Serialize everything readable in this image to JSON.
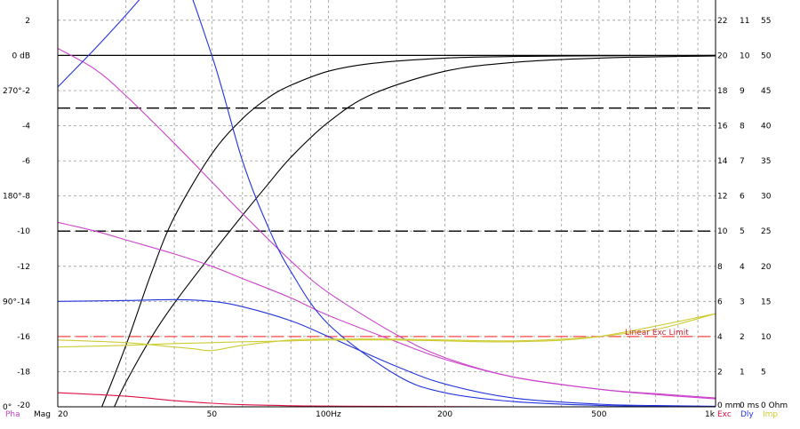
{
  "chart_data": {
    "type": "line",
    "x_scale": "log",
    "xlim": [
      20,
      1000
    ],
    "x_ticks": [
      {
        "value": 20,
        "label": "20"
      },
      {
        "value": 50,
        "label": "50"
      },
      {
        "value": 100,
        "label": "100Hz"
      },
      {
        "value": 200,
        "label": "200"
      },
      {
        "value": 500,
        "label": "500"
      },
      {
        "value": 1000,
        "label": "1k"
      }
    ],
    "x_minor": [
      30,
      40,
      60,
      70,
      80,
      90,
      150,
      300,
      400,
      600,
      700,
      800,
      900
    ],
    "left_axis": {
      "ylim": [
        -20,
        4
      ],
      "ticks": [
        {
          "value": 2,
          "label": "2"
        },
        {
          "value": 0,
          "label": "0 dB"
        },
        {
          "value": -2,
          "label": "-2"
        },
        {
          "value": -4,
          "label": "-4"
        },
        {
          "value": -6,
          "label": "-6"
        },
        {
          "value": -8,
          "label": "-8"
        },
        {
          "value": -10,
          "label": "-10"
        },
        {
          "value": -12,
          "label": "-12"
        },
        {
          "value": -14,
          "label": "-14"
        },
        {
          "value": -16,
          "label": "-16"
        },
        {
          "value": -18,
          "label": "-18"
        },
        {
          "value": -20,
          "label": "-20"
        }
      ]
    },
    "phase_axis": {
      "ticks": [
        {
          "at_db": -2,
          "label": "270°"
        },
        {
          "at_db": -8,
          "label": "180°"
        },
        {
          "at_db": -14,
          "label": "90°"
        },
        {
          "at_db": -20,
          "label": "0°"
        }
      ]
    },
    "right_axes": {
      "col1": [
        {
          "at_db": 2,
          "label": "22"
        },
        {
          "at_db": 0,
          "label": "20"
        },
        {
          "at_db": -2,
          "label": "18"
        },
        {
          "at_db": -4,
          "label": "16"
        },
        {
          "at_db": -6,
          "label": "14"
        },
        {
          "at_db": -8,
          "label": "12"
        },
        {
          "at_db": -10,
          "label": "10"
        },
        {
          "at_db": -12,
          "label": "8"
        },
        {
          "at_db": -14,
          "label": "6"
        },
        {
          "at_db": -16,
          "label": "4"
        },
        {
          "at_db": -18,
          "label": "2"
        },
        {
          "at_db": -20,
          "label": "0 mm"
        }
      ],
      "col2": [
        {
          "at_db": 2,
          "label": "11"
        },
        {
          "at_db": 0,
          "label": "10"
        },
        {
          "at_db": -2,
          "label": "9"
        },
        {
          "at_db": -4,
          "label": "8"
        },
        {
          "at_db": -6,
          "label": "7"
        },
        {
          "at_db": -8,
          "label": "6"
        },
        {
          "at_db": -10,
          "label": "5"
        },
        {
          "at_db": -12,
          "label": "4"
        },
        {
          "at_db": -14,
          "label": "3"
        },
        {
          "at_db": -16,
          "label": "2"
        },
        {
          "at_db": -18,
          "label": "1"
        },
        {
          "at_db": -20,
          "label": "0 ms"
        }
      ],
      "col3": [
        {
          "at_db": 2,
          "label": "55"
        },
        {
          "at_db": 0,
          "label": "50"
        },
        {
          "at_db": -2,
          "label": "45"
        },
        {
          "at_db": -4,
          "label": "40"
        },
        {
          "at_db": -6,
          "label": "35"
        },
        {
          "at_db": -8,
          "label": "30"
        },
        {
          "at_db": -10,
          "label": "25"
        },
        {
          "at_db": -12,
          "label": "20"
        },
        {
          "at_db": -14,
          "label": "15"
        },
        {
          "at_db": -16,
          "label": "10"
        },
        {
          "at_db": -18,
          "label": "5"
        },
        {
          "at_db": -20,
          "label": "0 Ohm"
        }
      ]
    },
    "bottom_labels": {
      "pha": "Pha",
      "mag": "Mag",
      "exc": "Exc",
      "dly": "Dly",
      "imp": "Imp"
    },
    "label_colors": {
      "pha": "#cc44cc",
      "mag": "#000000",
      "exc": "#dd1144",
      "dly": "#2233dd",
      "imp": "#cccc33"
    },
    "reference_lines": [
      {
        "y": 0,
        "style": "solid",
        "color": "#000000"
      },
      {
        "y": -3,
        "style": "dashed",
        "color": "#000000"
      },
      {
        "y": -10,
        "style": "dashed",
        "color": "#000000"
      },
      {
        "y": -16,
        "style": "dashed",
        "color": "#ff4444",
        "label": "Linear Exc Limit",
        "label_color": "#cc2233"
      }
    ],
    "series": [
      {
        "kind": "magnitude",
        "color": "#000000",
        "x": [
          26,
          30,
          35,
          40,
          50,
          60,
          70,
          80,
          100,
          130,
          200,
          300,
          500,
          1000
        ],
        "y": [
          -20,
          -16.5,
          -12.3,
          -9.2,
          -5.6,
          -3.6,
          -2.4,
          -1.7,
          -0.9,
          -0.45,
          -0.15,
          -0.06,
          -0.02,
          0
        ]
      },
      {
        "kind": "magnitude",
        "color": "#000000",
        "x": [
          28,
          30,
          35,
          40,
          50,
          60,
          70,
          80,
          100,
          130,
          200,
          300,
          500,
          1000
        ],
        "y": [
          -20,
          -18.6,
          -16,
          -14.1,
          -11.3,
          -9.1,
          -7.3,
          -5.8,
          -3.8,
          -2.2,
          -0.9,
          -0.4,
          -0.15,
          -0.03
        ]
      },
      {
        "kind": "phase",
        "color": "#cc44cc",
        "x": [
          20,
          25,
          30,
          40,
          50,
          60,
          80,
          100,
          150,
          200,
          300,
          500,
          700,
          1000
        ],
        "y": [
          0.4,
          -0.8,
          -2.3,
          -5.0,
          -7.2,
          -9.0,
          -11.7,
          -13.5,
          -15.9,
          -17.2,
          -18.3,
          -19.0,
          -19.25,
          -19.5
        ]
      },
      {
        "kind": "phase",
        "color": "#cc44cc",
        "x": [
          20,
          25,
          30,
          40,
          50,
          60,
          80,
          100,
          150,
          200,
          300,
          500,
          700,
          1000
        ],
        "y": [
          -9.5,
          -10.0,
          -10.5,
          -11.3,
          -12.0,
          -12.7,
          -13.8,
          -14.8,
          -16.3,
          -17.3,
          -18.3,
          -19.0,
          -19.3,
          -19.55
        ]
      },
      {
        "kind": "delay",
        "color": "#2233dd",
        "x": [
          20,
          25,
          30,
          35,
          40,
          50,
          60,
          70,
          80,
          100,
          150,
          200,
          300,
          500,
          1000
        ],
        "y": [
          -1.8,
          0.4,
          2.3,
          4.0,
          5.5,
          0,
          -6,
          -9.8,
          -12.3,
          -15.3,
          -18.2,
          -19.2,
          -19.7,
          -19.92,
          -20
        ]
      },
      {
        "kind": "delay",
        "color": "#2233dd",
        "x": [
          20,
          30,
          40,
          50,
          60,
          80,
          100,
          150,
          200,
          300,
          500,
          700,
          1000
        ],
        "y": [
          -14.0,
          -13.95,
          -13.9,
          -14.0,
          -14.3,
          -15.1,
          -16.0,
          -17.7,
          -18.7,
          -19.5,
          -19.85,
          -19.93,
          -19.97
        ]
      },
      {
        "kind": "impedance",
        "color": "#cccc33",
        "x": [
          20,
          30,
          40,
          45,
          50,
          60,
          80,
          100,
          150,
          200,
          300,
          400,
          500,
          600,
          700,
          800,
          1000
        ],
        "y": [
          -16.2,
          -16.35,
          -16.6,
          -16.7,
          -16.8,
          -16.5,
          -16.2,
          -16.15,
          -16.15,
          -16.2,
          -16.25,
          -16.15,
          -16.0,
          -15.8,
          -15.6,
          -15.3,
          -14.7
        ]
      },
      {
        "kind": "impedance",
        "color": "#cccc33",
        "x": [
          20,
          30,
          40,
          50,
          60,
          80,
          100,
          150,
          200,
          300,
          500,
          1000
        ],
        "y": [
          -16.6,
          -16.5,
          -16.4,
          -16.35,
          -16.3,
          -16.25,
          -16.2,
          -16.2,
          -16.25,
          -16.3,
          -16.0,
          -14.7
        ]
      },
      {
        "kind": "excursion",
        "color": "#dd1144",
        "x": [
          20,
          30,
          40,
          50,
          60,
          80,
          100,
          150,
          200,
          300,
          500,
          1000
        ],
        "y": [
          -19.2,
          -19.4,
          -19.65,
          -19.8,
          -19.88,
          -19.94,
          -19.96,
          -19.98,
          -19.99,
          -20,
          -20,
          -20
        ]
      }
    ]
  }
}
